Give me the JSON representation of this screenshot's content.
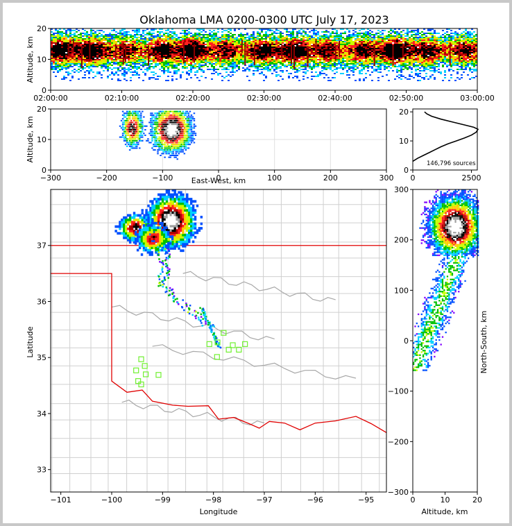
{
  "chart_data": [
    {
      "type": "heatmap",
      "panel": "time-altitude",
      "title": "Oklahoma LMA 0200-0300 UTC July 17, 2023",
      "ylabel": "Altitude, km",
      "ylim": [
        0,
        20
      ],
      "yticks": [
        "0",
        "10",
        "20"
      ],
      "xticks": [
        "02:00:00",
        "02:10:00",
        "02:20:00",
        "02:30:00",
        "02:40:00",
        "02:50:00",
        "03:00:00"
      ],
      "colormap": [
        "#8000ff",
        "#0050ff",
        "#00d0ff",
        "#00c000",
        "#c8ff00",
        "#ffcc00",
        "#ff2020",
        "#b00000",
        "#000000",
        "#a0a0a0",
        "#ffffff"
      ]
    },
    {
      "type": "heatmap",
      "panel": "east-west-altitude",
      "xlabel": "East-West, km",
      "ylabel": "Altitude, km",
      "xlim": [
        -300,
        300
      ],
      "ylim": [
        0,
        20
      ],
      "xticks": [
        "−300",
        "−200",
        "−100",
        "0",
        "100",
        "200",
        "300"
      ],
      "yticks": [
        "0",
        "10",
        "20"
      ]
    },
    {
      "type": "line",
      "panel": "altitude-histogram",
      "annotation": "146,796 sources",
      "xticks": [
        "0",
        "2500"
      ],
      "yticks": [
        "0",
        "10",
        "20"
      ],
      "xlim": [
        0,
        2750
      ],
      "ylim": [
        0,
        21
      ],
      "series": [
        {
          "name": "sources per altitude bin",
          "x": [
            0,
            200,
            450,
            700,
            950,
            1200,
            1500,
            1850,
            2200,
            2500,
            2700,
            2780,
            2600,
            2200,
            1700,
            1200,
            800,
            600,
            500
          ],
          "y": [
            3,
            4,
            5,
            6,
            7,
            8,
            9,
            10,
            11,
            12,
            13,
            14,
            14.7,
            15.5,
            16.5,
            17.5,
            18.5,
            19.3,
            20
          ]
        }
      ]
    },
    {
      "type": "heatmap",
      "panel": "plan-view",
      "xlabel": "Longitude",
      "ylabel": "Latitude",
      "xlim": [
        -101.2,
        -94.6
      ],
      "ylim": [
        32.6,
        38.0
      ],
      "xticks": [
        "−101",
        "−100",
        "−99",
        "−98",
        "−97",
        "−96",
        "−95"
      ],
      "yticks": [
        "33",
        "34",
        "35",
        "36",
        "37"
      ],
      "stations": [
        {
          "lon": -99.42,
          "lat": 34.97
        },
        {
          "lon": -99.35,
          "lat": 34.85
        },
        {
          "lon": -99.52,
          "lat": 34.77
        },
        {
          "lon": -99.33,
          "lat": 34.7
        },
        {
          "lon": -99.08,
          "lat": 34.69
        },
        {
          "lon": -99.48,
          "lat": 34.58
        },
        {
          "lon": -99.42,
          "lat": 34.52
        },
        {
          "lon": -98.08,
          "lat": 35.24
        },
        {
          "lon": -97.92,
          "lat": 35.27
        },
        {
          "lon": -97.8,
          "lat": 35.44
        },
        {
          "lon": -97.7,
          "lat": 35.14
        },
        {
          "lon": -97.62,
          "lat": 35.22
        },
        {
          "lon": -97.5,
          "lat": 35.14
        },
        {
          "lon": -97.38,
          "lat": 35.24
        },
        {
          "lon": -97.93,
          "lat": 35.01
        }
      ]
    },
    {
      "type": "heatmap",
      "panel": "altitude-north-south",
      "xlabel": "Altitude, km",
      "ylabel": "North-South, km",
      "xlim": [
        0,
        20
      ],
      "ylim": [
        -300,
        300
      ],
      "xticks": [
        "0",
        "10",
        "20"
      ],
      "yticks": [
        "−300",
        "−200",
        "−100",
        "0",
        "100",
        "200",
        "300"
      ]
    }
  ]
}
